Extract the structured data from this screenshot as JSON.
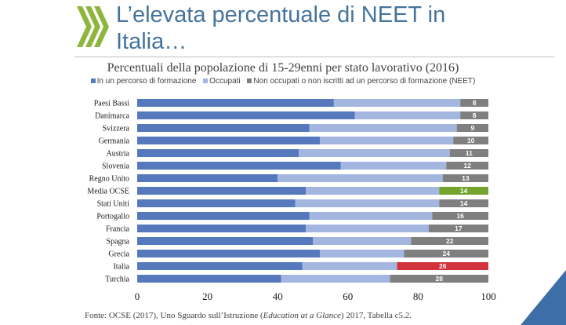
{
  "slide": {
    "title_line1": "L’elevata percentuale di NEET in",
    "title_line2": "Italia…",
    "source_prefix": "Fonte: OCSE (2017), Uno Sguardo sull’Istruzione (",
    "source_italic": "Education at a Glance",
    "source_suffix": ") 2017, Tabella c5.2."
  },
  "colors": {
    "education": "#5579bc",
    "employed": "#a3b6e0",
    "neet": "#7f7f7f",
    "highlight_oecd": "#76a22e",
    "highlight_italy": "#d2323c",
    "title": "#45739c",
    "logo_green": "#8cb63c",
    "corner": "#3e6ea8"
  },
  "chart_data": {
    "type": "bar",
    "orientation": "horizontal",
    "stacked": true,
    "title": "Percentuali della popolazione di 15-29enni per stato lavorativo (2016)",
    "xlim": [
      0,
      100
    ],
    "xticks": [
      0,
      20,
      40,
      60,
      80,
      100
    ],
    "legend_position": "top",
    "categories": [
      "Paesi Bassi",
      "Danimarca",
      "Svizzera",
      "Germania",
      "Austria",
      "Slovenia",
      "Regno Unito",
      "Media OCSE",
      "Stati Uniti",
      "Portogallo",
      "Francia",
      "Spagna",
      "Grecia",
      "Italia",
      "Turchia"
    ],
    "series": [
      {
        "name": "In un percorso di formazione",
        "values": [
          56,
          62,
          49,
          52,
          46,
          58,
          40,
          48,
          45,
          49,
          48,
          50,
          52,
          47,
          41
        ]
      },
      {
        "name": "Occupati",
        "values": [
          36,
          30,
          42,
          38,
          43,
          30,
          47,
          38,
          41,
          35,
          35,
          28,
          24,
          27,
          31
        ]
      },
      {
        "name": "Non occupati o non iscritti ad un percorso di formazione (NEET)",
        "values": [
          8,
          8,
          9,
          10,
          11,
          12,
          13,
          14,
          14,
          16,
          17,
          22,
          24,
          26,
          28
        ]
      }
    ],
    "neet_labels": [
      "8",
      "8",
      "9",
      "10",
      "11",
      "12",
      "13",
      "14",
      "14",
      "16",
      "17",
      "22",
      "24",
      "26",
      "28"
    ],
    "highlight": {
      "Media OCSE": "green",
      "Italia": "red"
    }
  }
}
